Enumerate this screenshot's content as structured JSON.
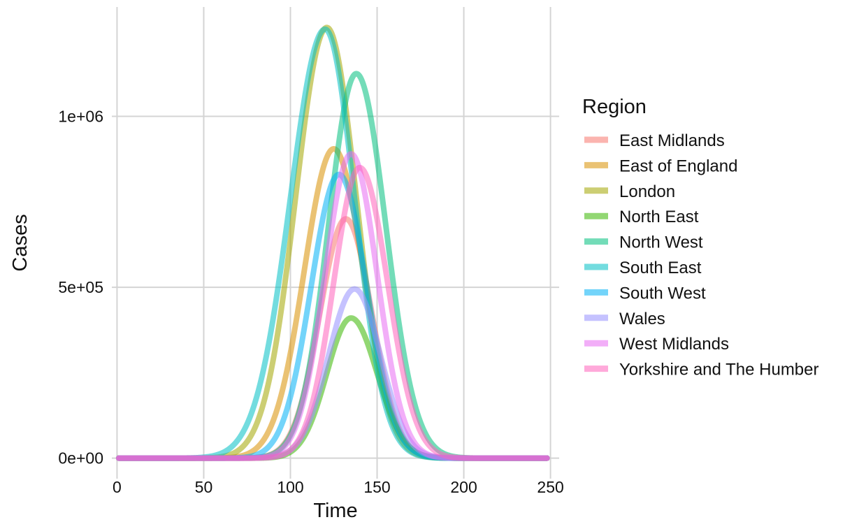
{
  "chart_data": {
    "type": "line",
    "xlabel": "Time",
    "ylabel": "Cases",
    "xlim": [
      -3,
      255
    ],
    "ylim": [
      -60000,
      1320000
    ],
    "x_ticks": [
      0,
      50,
      100,
      150,
      200,
      250
    ],
    "x_tick_labels": [
      "0",
      "50",
      "100",
      "150",
      "200",
      "250"
    ],
    "y_ticks": [
      0,
      500000,
      1000000
    ],
    "y_tick_labels": [
      "0e+00",
      "5e+05",
      "1e+06"
    ],
    "grid": true,
    "x_range": [
      1,
      248
    ],
    "legend": {
      "title": "Region",
      "position": "right"
    },
    "series": [
      {
        "name": "East Midlands",
        "color": "#F8766D",
        "peak_time": 132,
        "peak_cases": 700000,
        "rise_width": 15,
        "fall_width": 15
      },
      {
        "name": "East of England",
        "color": "#D89000",
        "peak_time": 125,
        "peak_cases": 905000,
        "rise_width": 17,
        "fall_width": 17
      },
      {
        "name": "London",
        "color": "#A3A500",
        "peak_time": 121,
        "peak_cases": 1260000,
        "rise_width": 18,
        "fall_width": 17
      },
      {
        "name": "North East",
        "color": "#39B600",
        "peak_time": 135,
        "peak_cases": 410000,
        "rise_width": 14,
        "fall_width": 15
      },
      {
        "name": "North West",
        "color": "#00BF7D",
        "peak_time": 138,
        "peak_cases": 1125000,
        "rise_width": 16,
        "fall_width": 17
      },
      {
        "name": "South East",
        "color": "#00BFC4",
        "peak_time": 120,
        "peak_cases": 1255000,
        "rise_width": 20,
        "fall_width": 17
      },
      {
        "name": "South West",
        "color": "#00B0F6",
        "peak_time": 128,
        "peak_cases": 830000,
        "rise_width": 16,
        "fall_width": 16
      },
      {
        "name": "Wales",
        "color": "#9590FF",
        "peak_time": 137,
        "peak_cases": 495000,
        "rise_width": 15,
        "fall_width": 15
      },
      {
        "name": "West Midlands",
        "color": "#E76BF3",
        "peak_time": 135,
        "peak_cases": 890000,
        "rise_width": 15,
        "fall_width": 15
      },
      {
        "name": "Yorkshire and The Humber",
        "color": "#FF62BC",
        "peak_time": 140,
        "peak_cases": 850000,
        "rise_width": 15,
        "fall_width": 16
      }
    ]
  }
}
